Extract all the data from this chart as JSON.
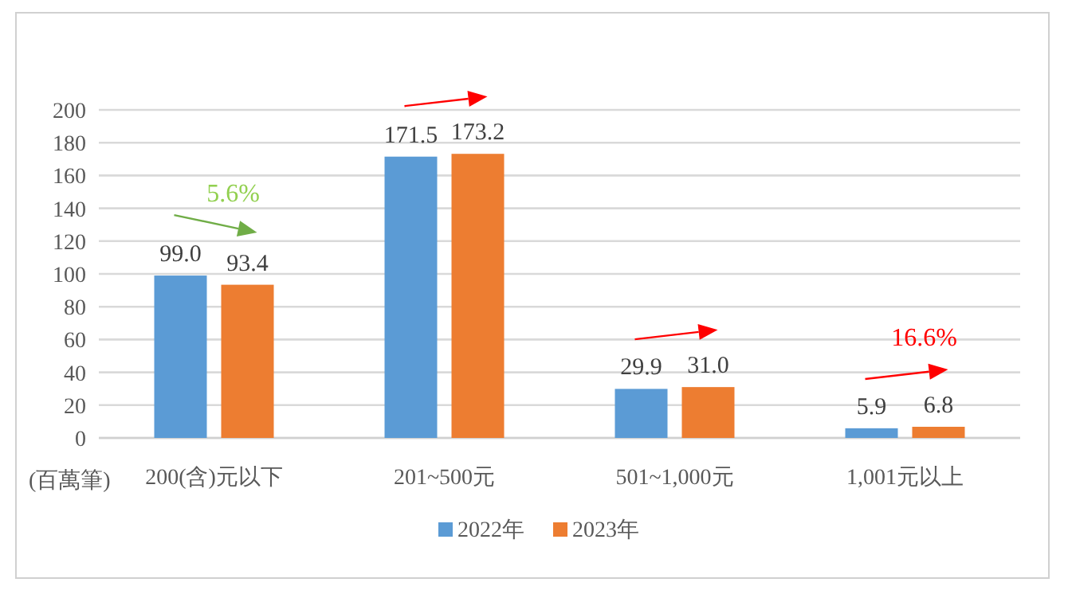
{
  "chart_data": {
    "type": "bar",
    "ylabel": "(百萬筆)",
    "categories": [
      "200(含)元以下",
      "201~500元",
      "501~1,000元",
      "1,001元以上"
    ],
    "series": [
      {
        "name": "2022年",
        "color": "#5b9bd5",
        "values": [
          99.0,
          171.5,
          29.9,
          5.9
        ],
        "value_labels": [
          "99.0",
          "171.5",
          "29.9",
          "5.9"
        ]
      },
      {
        "name": "2023年",
        "color": "#ed7d31",
        "values": [
          93.4,
          173.2,
          31.0,
          6.8
        ],
        "value_labels": [
          "93.4",
          "173.2",
          "31.0",
          "6.8"
        ]
      }
    ],
    "ylim": [
      0,
      200
    ],
    "yticks": [
      0,
      20,
      40,
      60,
      80,
      100,
      120,
      140,
      160,
      180,
      200
    ],
    "grid": "y",
    "legend": "bottom",
    "annotations": [
      "5.6%",
      "16.6%"
    ]
  }
}
